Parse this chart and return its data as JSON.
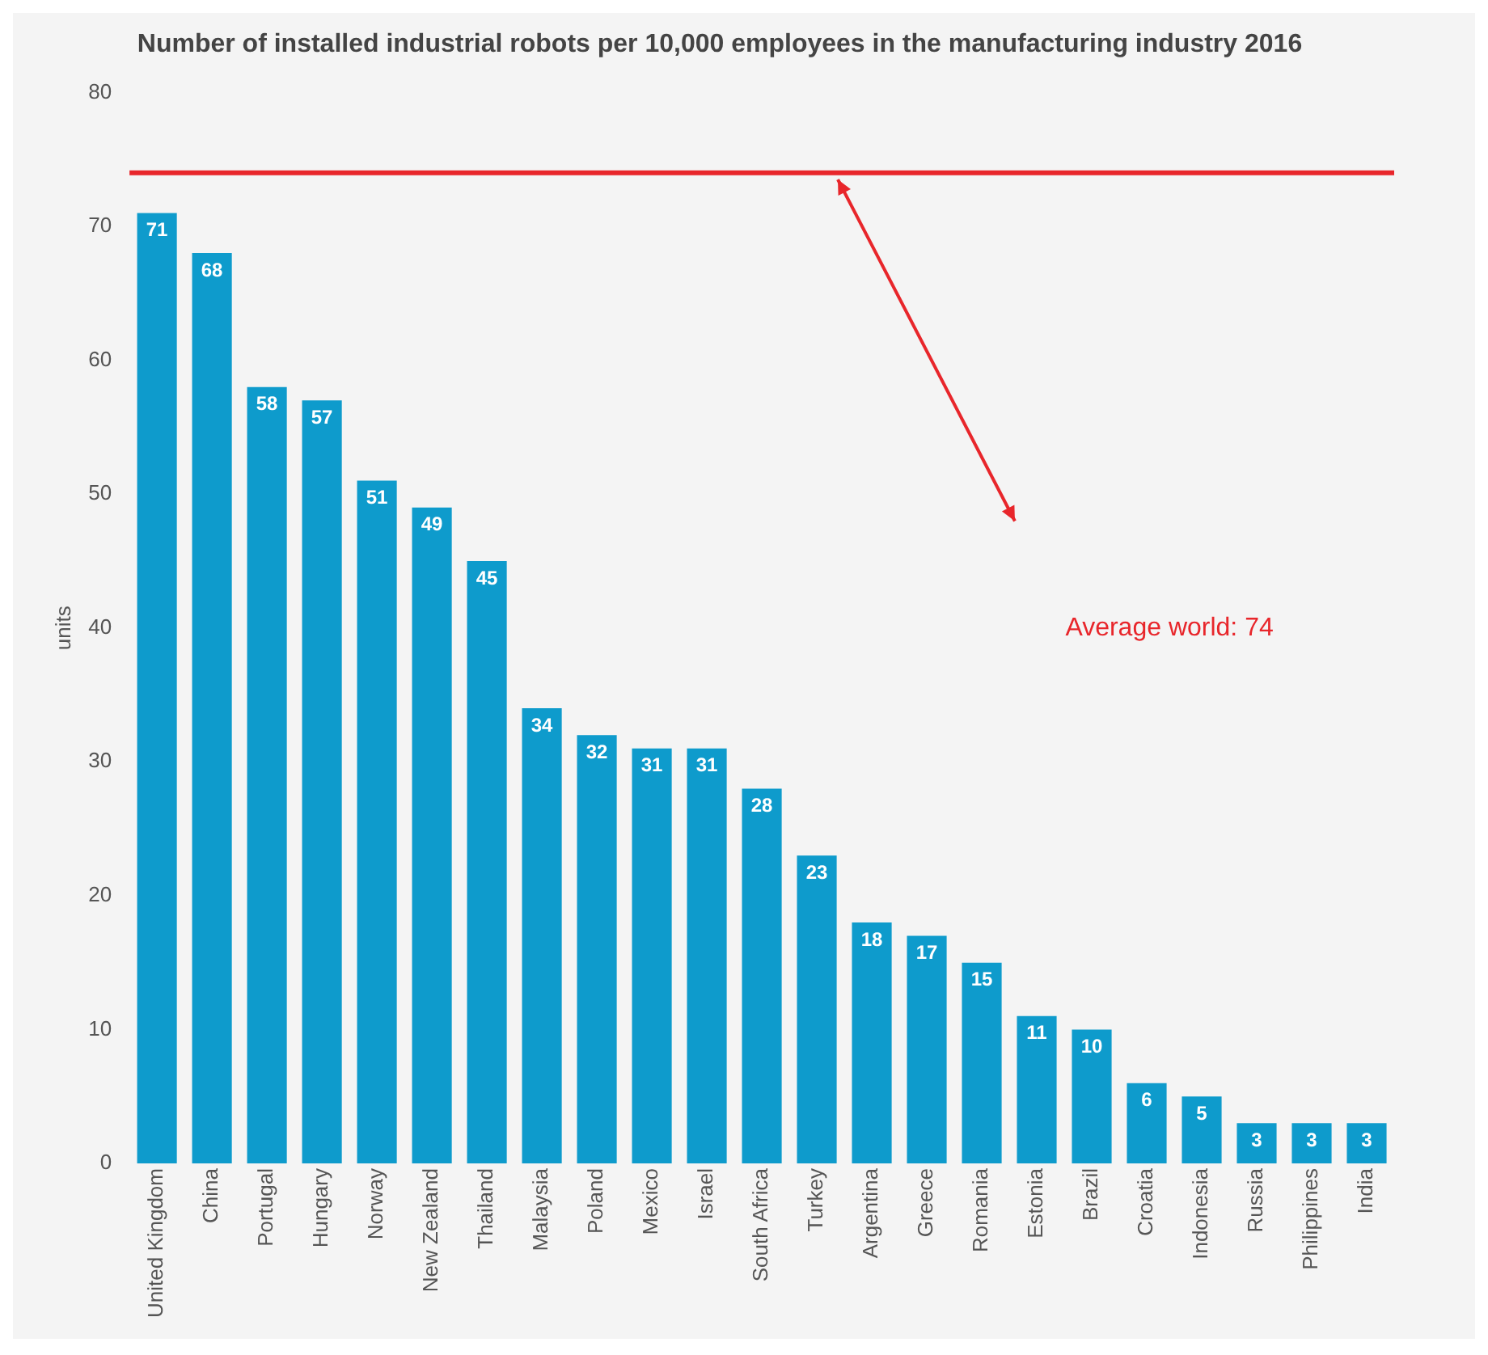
{
  "chart_data": {
    "type": "bar",
    "title": "Number of installed industrial robots per 10,000 employees in the manufacturing industry 2016",
    "ylabel": "units",
    "categories": [
      "United Kingdom",
      "China",
      "Portugal",
      "Hungary",
      "Norway",
      "New Zealand",
      "Thailand",
      "Malaysia",
      "Poland",
      "Mexico",
      "Israel",
      "South Africa",
      "Turkey",
      "Argentina",
      "Greece",
      "Romania",
      "Estonia",
      "Brazil",
      "Croatia",
      "Indonesia",
      "Russia",
      "Philippines",
      "India"
    ],
    "values": [
      71,
      68,
      58,
      57,
      51,
      49,
      45,
      34,
      32,
      31,
      31,
      28,
      23,
      18,
      17,
      15,
      11,
      10,
      6,
      5,
      3,
      3,
      3
    ],
    "color": "#0e9bcc",
    "ylim": [
      0,
      80
    ],
    "yticks": [
      0,
      10,
      20,
      30,
      40,
      50,
      60,
      70,
      80
    ],
    "grid": false,
    "legend": false,
    "data_labels": true,
    "ref_lines": [
      {
        "axis": "y",
        "value": 74,
        "label": "Average world: 74",
        "color": "#e8262b"
      }
    ]
  }
}
